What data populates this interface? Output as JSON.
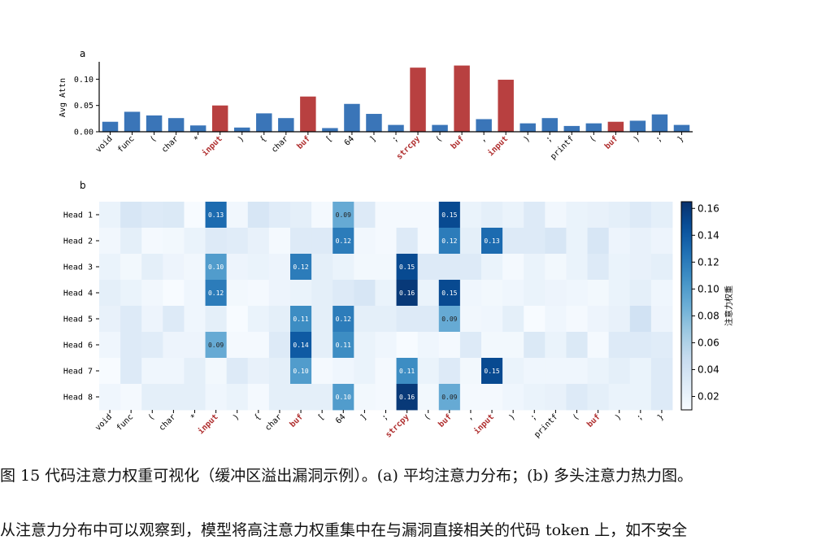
{
  "chart_data": [
    {
      "type": "bar",
      "panel_label": "a",
      "ylabel": "Avg Attn",
      "ylim": [
        0,
        0.13
      ],
      "yticks": [
        "0.00",
        "0.05",
        "0.10"
      ],
      "ytick_values": [
        0,
        0.05,
        0.1
      ],
      "categories": [
        "void",
        "func",
        "(",
        "char",
        "*",
        "input",
        ")",
        "{",
        "char",
        "buf",
        "[",
        "64",
        "]",
        ";",
        "strcpy",
        "(",
        "buf",
        ",",
        "input",
        ")",
        ";",
        "printf",
        "(",
        "buf",
        ")",
        ";",
        "}"
      ],
      "values": [
        0.019,
        0.038,
        0.031,
        0.026,
        0.012,
        0.05,
        0.008,
        0.035,
        0.026,
        0.067,
        0.007,
        0.053,
        0.034,
        0.013,
        0.122,
        0.013,
        0.126,
        0.024,
        0.099,
        0.016,
        0.026,
        0.011,
        0.016,
        0.019,
        0.021,
        0.033,
        0.013
      ],
      "highlight": [
        false,
        false,
        false,
        false,
        false,
        true,
        false,
        false,
        false,
        true,
        false,
        false,
        false,
        false,
        true,
        false,
        true,
        false,
        true,
        false,
        false,
        false,
        false,
        true,
        false,
        false,
        false
      ],
      "colors": {
        "normal": "#3a75b8",
        "highlight": "#b84040"
      }
    },
    {
      "type": "heatmap",
      "panel_label": "b",
      "rows": [
        "Head 1",
        "Head 2",
        "Head 3",
        "Head 4",
        "Head 5",
        "Head 6",
        "Head 7",
        "Head 8"
      ],
      "columns": [
        "void",
        "func",
        "(",
        "char",
        "*",
        "input",
        ")",
        "{",
        "char",
        "buf",
        "[",
        "64",
        "]",
        ";",
        "strcpy",
        "(",
        "buf",
        ",",
        "input",
        ")",
        ";",
        "printf",
        "(",
        "buf",
        ")",
        ";",
        "}"
      ],
      "values": [
        [
          0.02,
          0.035,
          0.03,
          0.032,
          0.01,
          0.13,
          0.015,
          0.035,
          0.028,
          0.025,
          0.012,
          0.09,
          0.03,
          0.012,
          0.012,
          0.012,
          0.15,
          0.02,
          0.025,
          0.02,
          0.03,
          0.015,
          0.02,
          0.022,
          0.025,
          0.03,
          0.025
        ],
        [
          0.015,
          0.025,
          0.012,
          0.014,
          0.02,
          0.03,
          0.028,
          0.022,
          0.012,
          0.03,
          0.03,
          0.12,
          0.015,
          0.012,
          0.03,
          0.012,
          0.12,
          0.025,
          0.13,
          0.03,
          0.03,
          0.035,
          0.02,
          0.035,
          0.018,
          0.022,
          0.018
        ],
        [
          0.02,
          0.014,
          0.025,
          0.018,
          0.015,
          0.1,
          0.018,
          0.02,
          0.018,
          0.12,
          0.025,
          0.02,
          0.014,
          0.014,
          0.15,
          0.03,
          0.03,
          0.03,
          0.02,
          0.012,
          0.02,
          0.014,
          0.02,
          0.03,
          0.02,
          0.022,
          0.025
        ],
        [
          0.025,
          0.02,
          0.015,
          0.01,
          0.016,
          0.12,
          0.014,
          0.012,
          0.018,
          0.02,
          0.025,
          0.03,
          0.035,
          0.02,
          0.16,
          0.02,
          0.15,
          0.016,
          0.014,
          0.016,
          0.02,
          0.018,
          0.016,
          0.014,
          0.02,
          0.025,
          0.016
        ],
        [
          0.022,
          0.03,
          0.018,
          0.03,
          0.016,
          0.025,
          0.01,
          0.02,
          0.025,
          0.11,
          0.025,
          0.12,
          0.025,
          0.025,
          0.03,
          0.03,
          0.09,
          0.015,
          0.016,
          0.025,
          0.01,
          0.016,
          0.012,
          0.018,
          0.022,
          0.04,
          0.018
        ],
        [
          0.016,
          0.03,
          0.028,
          0.018,
          0.018,
          0.09,
          0.012,
          0.012,
          0.03,
          0.14,
          0.025,
          0.11,
          0.02,
          0.016,
          0.01,
          0.016,
          0.012,
          0.03,
          0.014,
          0.014,
          0.032,
          0.02,
          0.032,
          0.012,
          0.03,
          0.03,
          0.028
        ],
        [
          0.01,
          0.03,
          0.016,
          0.016,
          0.025,
          0.014,
          0.03,
          0.022,
          0.025,
          0.1,
          0.012,
          0.016,
          0.02,
          0.012,
          0.11,
          0.02,
          0.03,
          0.014,
          0.15,
          0.02,
          0.016,
          0.016,
          0.016,
          0.02,
          0.025,
          0.02,
          0.03
        ],
        [
          0.016,
          0.012,
          0.025,
          0.025,
          0.025,
          0.016,
          0.02,
          0.012,
          0.025,
          0.025,
          0.025,
          0.1,
          0.014,
          0.012,
          0.16,
          0.014,
          0.09,
          0.012,
          0.012,
          0.016,
          0.02,
          0.022,
          0.03,
          0.025,
          0.02,
          0.02,
          0.03
        ]
      ],
      "annotations": [
        {
          "row": 0,
          "col": 5,
          "text": "0.13"
        },
        {
          "row": 0,
          "col": 11,
          "text": "0.09"
        },
        {
          "row": 0,
          "col": 16,
          "text": "0.15"
        },
        {
          "row": 1,
          "col": 11,
          "text": "0.12"
        },
        {
          "row": 1,
          "col": 16,
          "text": "0.12"
        },
        {
          "row": 1,
          "col": 18,
          "text": "0.13"
        },
        {
          "row": 2,
          "col": 5,
          "text": "0.10"
        },
        {
          "row": 2,
          "col": 9,
          "text": "0.12"
        },
        {
          "row": 2,
          "col": 14,
          "text": "0.15"
        },
        {
          "row": 3,
          "col": 5,
          "text": "0.12"
        },
        {
          "row": 3,
          "col": 14,
          "text": "0.16"
        },
        {
          "row": 3,
          "col": 16,
          "text": "0.15"
        },
        {
          "row": 4,
          "col": 9,
          "text": "0.11"
        },
        {
          "row": 4,
          "col": 11,
          "text": "0.12"
        },
        {
          "row": 4,
          "col": 16,
          "text": "0.09"
        },
        {
          "row": 5,
          "col": 5,
          "text": "0.09"
        },
        {
          "row": 5,
          "col": 9,
          "text": "0.14"
        },
        {
          "row": 5,
          "col": 11,
          "text": "0.11"
        },
        {
          "row": 6,
          "col": 9,
          "text": "0.10"
        },
        {
          "row": 6,
          "col": 14,
          "text": "0.11"
        },
        {
          "row": 6,
          "col": 18,
          "text": "0.15"
        },
        {
          "row": 7,
          "col": 11,
          "text": "0.10"
        },
        {
          "row": 7,
          "col": 14,
          "text": "0.16"
        },
        {
          "row": 7,
          "col": 16,
          "text": "0.09"
        }
      ],
      "highlight": [
        false,
        false,
        false,
        false,
        false,
        true,
        false,
        false,
        false,
        true,
        false,
        false,
        false,
        false,
        true,
        false,
        true,
        false,
        true,
        false,
        false,
        false,
        false,
        true,
        false,
        false,
        false
      ],
      "colorbar_label": "注意力权重",
      "colorbar_ticks": [
        "0.02",
        "0.04",
        "0.06",
        "0.08",
        "0.10",
        "0.12",
        "0.14",
        "0.16"
      ],
      "colorbar_tick_values": [
        0.02,
        0.04,
        0.06,
        0.08,
        0.1,
        0.12,
        0.14,
        0.16
      ],
      "vmin": 0.01,
      "vmax": 0.165,
      "colormap": "Blues",
      "colors": {
        "tick_highlight": "#b03030"
      }
    }
  ],
  "caption": "图 15 代码注意力权重可视化（缓冲区溢出漏洞示例）。(a) 平均注意力分布；(b) 多头注意力热力图。",
  "paragraph": "从注意力分布中可以观察到，模型将高注意力权重集中在与漏洞直接相关的代码 token 上，如不安全"
}
